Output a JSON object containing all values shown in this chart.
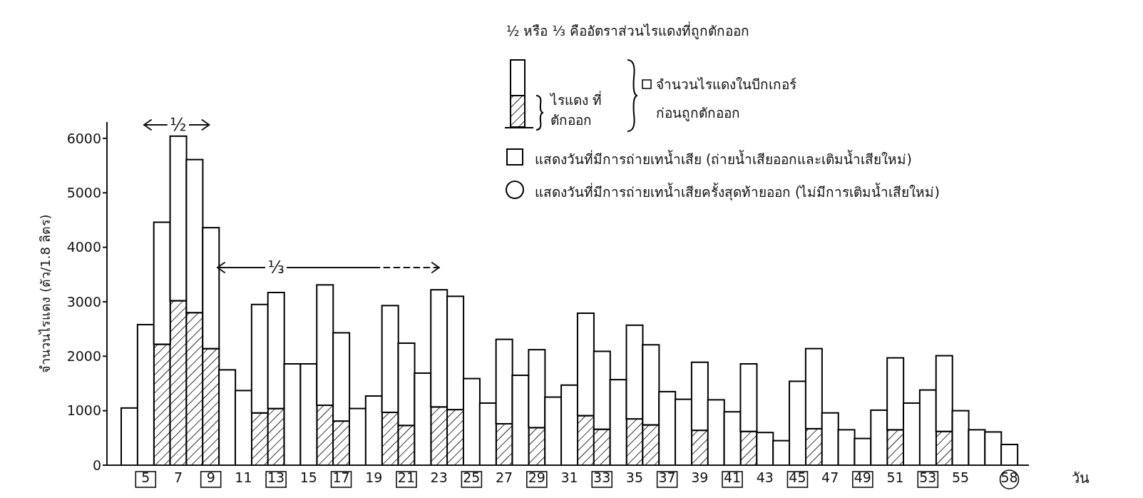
{
  "chart_data": {
    "type": "bar",
    "stacked": true,
    "xlabel": "วัน",
    "ylabel": "จำนวนไรแดง (ตัว/1.8 ลิตร)",
    "categories": [
      null,
      "5",
      null,
      "7",
      null,
      "9",
      null,
      "11",
      null,
      "13",
      null,
      "15",
      null,
      "17",
      null,
      "19",
      null,
      "21",
      null,
      "23",
      null,
      "25",
      null,
      "27",
      null,
      "29",
      null,
      "31",
      null,
      "33",
      null,
      "35",
      null,
      "37",
      null,
      "39",
      null,
      "41",
      null,
      "43",
      null,
      "45",
      null,
      "47",
      null,
      "49",
      null,
      "51",
      null,
      "53",
      null,
      "55",
      null,
      null,
      "58"
    ],
    "series": [
      {
        "name": "ไรแดง ที่ตักออก",
        "color": "#000000",
        "values": [
          0,
          0,
          2220,
          3020,
          2800,
          2140,
          0,
          0,
          960,
          1040,
          0,
          0,
          1100,
          810,
          0,
          0,
          970,
          730,
          0,
          1070,
          1020,
          0,
          0,
          760,
          0,
          690,
          0,
          0,
          910,
          660,
          0,
          850,
          740,
          0,
          0,
          640,
          0,
          0,
          620,
          0,
          0,
          0,
          670,
          0,
          0,
          0,
          0,
          650,
          0,
          0,
          620,
          0,
          0,
          0,
          0
        ]
      },
      {
        "name": "จำนวนไรแดงในบีกเกอร์ ก่อนถูกตักออก",
        "color": "#ffffff",
        "values": [
          1050,
          2580,
          2240,
          3020,
          2810,
          2220,
          1750,
          1370,
          1990,
          2130,
          1860,
          1860,
          2210,
          1620,
          1040,
          1270,
          1960,
          1510,
          1690,
          2150,
          2080,
          1590,
          1140,
          1550,
          1650,
          1430,
          1250,
          1470,
          1880,
          1430,
          1570,
          1720,
          1470,
          1350,
          1210,
          1250,
          1200,
          980,
          1240,
          600,
          450,
          1540,
          1470,
          960,
          650,
          490,
          1010,
          1320,
          1140,
          1380,
          1390,
          1000,
          650,
          610,
          380
        ]
      }
    ],
    "ylim": [
      0,
      6300
    ],
    "yticks": [
      0,
      1000,
      2000,
      3000,
      4000,
      5000,
      6000
    ],
    "grid": false,
    "legend": "top right",
    "annotations": [
      {
        "text": "½",
        "x": "7",
        "y": 6250
      },
      {
        "text": "⅓",
        "x": "13",
        "y": 3630
      },
      "½ หรือ ⅓ คืออัตราส่วนไรแดงที่ถูกตักออก",
      "แสดงวันที่มีการถ่ายเทน้ำเสีย (ถ่ายน้ำเสียออกและเติมน้ำเสียใหม่)",
      "แสดงวันที่มีการถ่ายเทน้ำเสียครั้งสุดท้ายออก (ไม่มีการเติมน้ำเสียใหม่)"
    ]
  }
}
